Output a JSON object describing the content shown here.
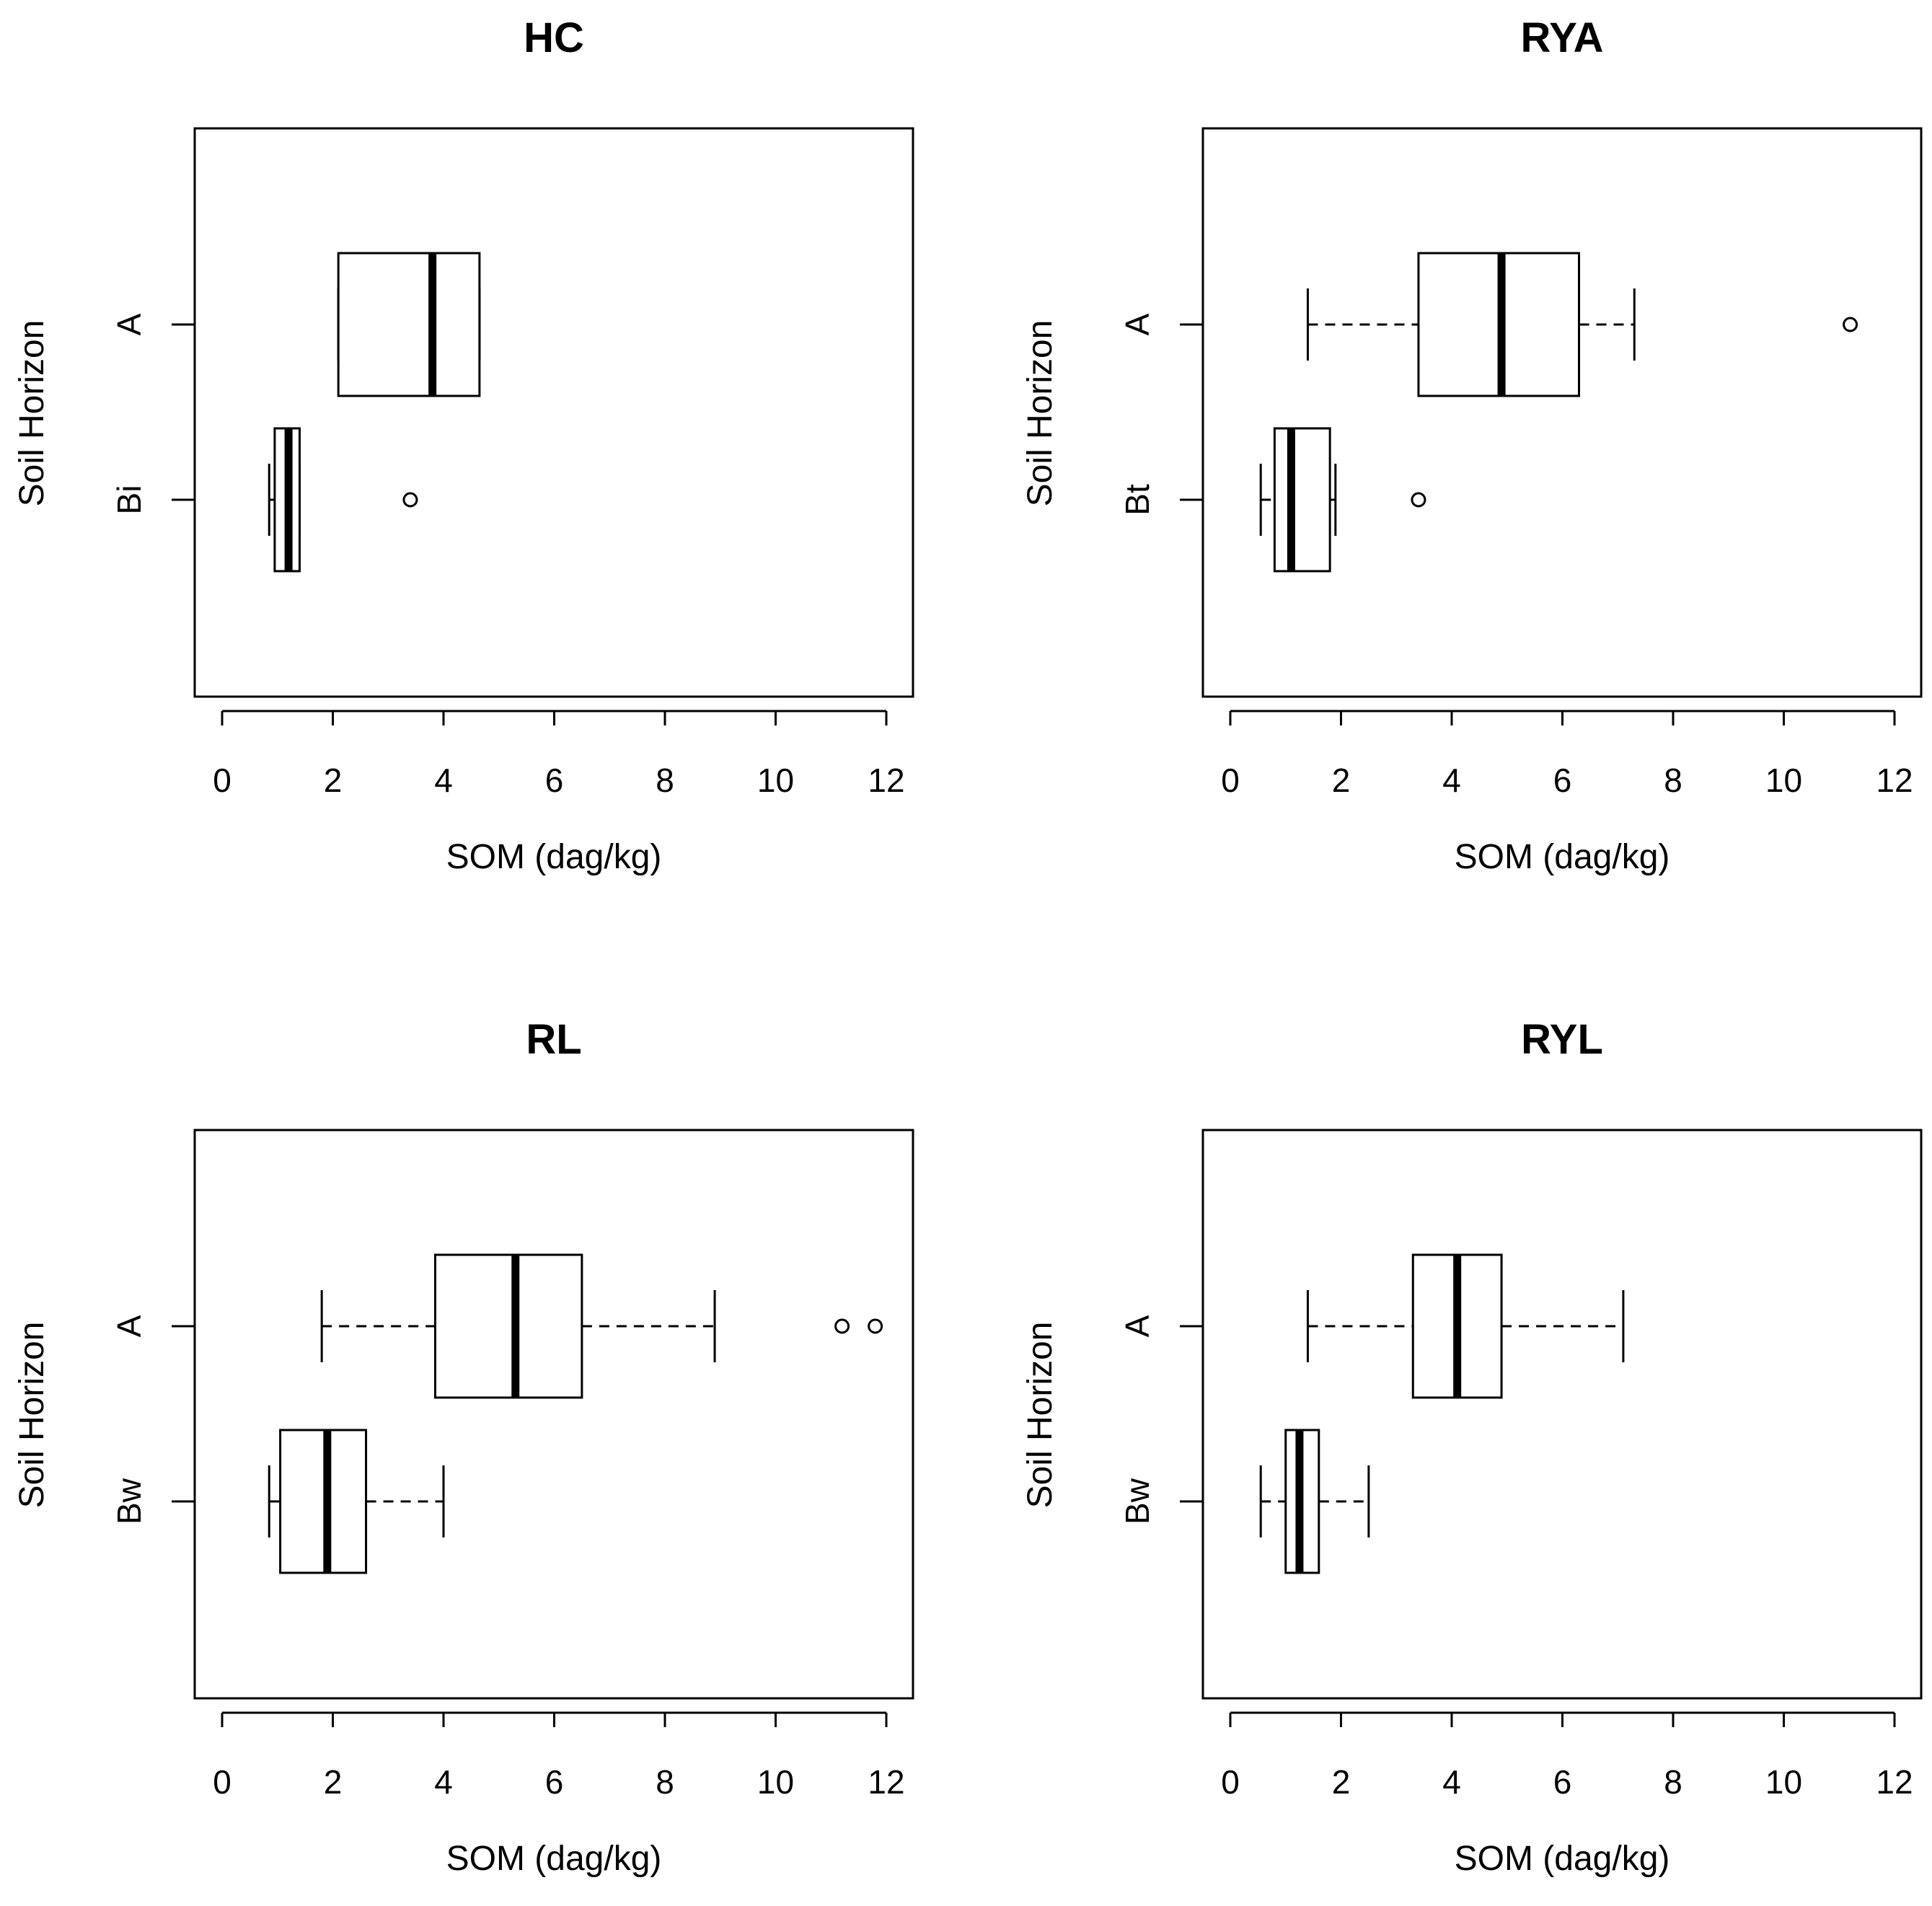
{
  "chart_data": [
    {
      "type": "boxplot",
      "title": "HC",
      "xlabel": "SOM (dag/kg)",
      "ylabel": "Soil Horizon",
      "xlim": [
        0,
        12
      ],
      "xticks": [
        "0",
        "2",
        "4",
        "6",
        "8",
        "10",
        "12"
      ],
      "groups": [
        {
          "label": "A",
          "min": 2.1,
          "q1": 2.1,
          "median": 3.8,
          "q3": 4.65,
          "max": 4.65,
          "outliers": []
        },
        {
          "label": "Bi",
          "min": 0.85,
          "q1": 0.95,
          "median": 1.2,
          "q3": 1.4,
          "max": 1.4,
          "outliers": [
            3.4
          ]
        }
      ]
    },
    {
      "type": "boxplot",
      "title": "RYA",
      "xlabel": "SOM (dag/kg)",
      "ylabel": "Soil Horizon",
      "xlim": [
        0,
        12
      ],
      "xticks": [
        "0",
        "2",
        "4",
        "6",
        "8",
        "10",
        "12"
      ],
      "groups": [
        {
          "label": "A",
          "min": 1.4,
          "q1": 3.4,
          "median": 4.9,
          "q3": 6.3,
          "max": 7.3,
          "outliers": [
            11.2
          ]
        },
        {
          "label": "Bt",
          "min": 0.55,
          "q1": 0.8,
          "median": 1.1,
          "q3": 1.8,
          "max": 1.9,
          "outliers": [
            3.4
          ]
        }
      ]
    },
    {
      "type": "boxplot",
      "title": "RL",
      "xlabel": "SOM (dag/kg)",
      "ylabel": "Soil Horizon",
      "xlim": [
        0,
        12
      ],
      "xticks": [
        "0",
        "2",
        "4",
        "6",
        "8",
        "10",
        "12"
      ],
      "groups": [
        {
          "label": "A",
          "min": 1.8,
          "q1": 3.85,
          "median": 5.3,
          "q3": 6.5,
          "max": 8.9,
          "outliers": [
            11.2,
            11.8
          ]
        },
        {
          "label": "Bw",
          "min": 0.85,
          "q1": 1.05,
          "median": 1.9,
          "q3": 2.6,
          "max": 4.0,
          "outliers": []
        }
      ]
    },
    {
      "type": "boxplot",
      "title": "RYL",
      "xlabel": "SOM (dag/kg)",
      "ylabel": "Soil Horizon",
      "xlim": [
        0,
        12
      ],
      "xticks": [
        "0",
        "2",
        "4",
        "6",
        "8",
        "10",
        "12"
      ],
      "groups": [
        {
          "label": "A",
          "min": 1.4,
          "q1": 3.3,
          "median": 4.1,
          "q3": 4.9,
          "max": 7.1,
          "outliers": []
        },
        {
          "label": "Bw",
          "min": 0.55,
          "q1": 1.0,
          "median": 1.25,
          "q3": 1.6,
          "max": 2.5,
          "outliers": []
        }
      ]
    }
  ]
}
